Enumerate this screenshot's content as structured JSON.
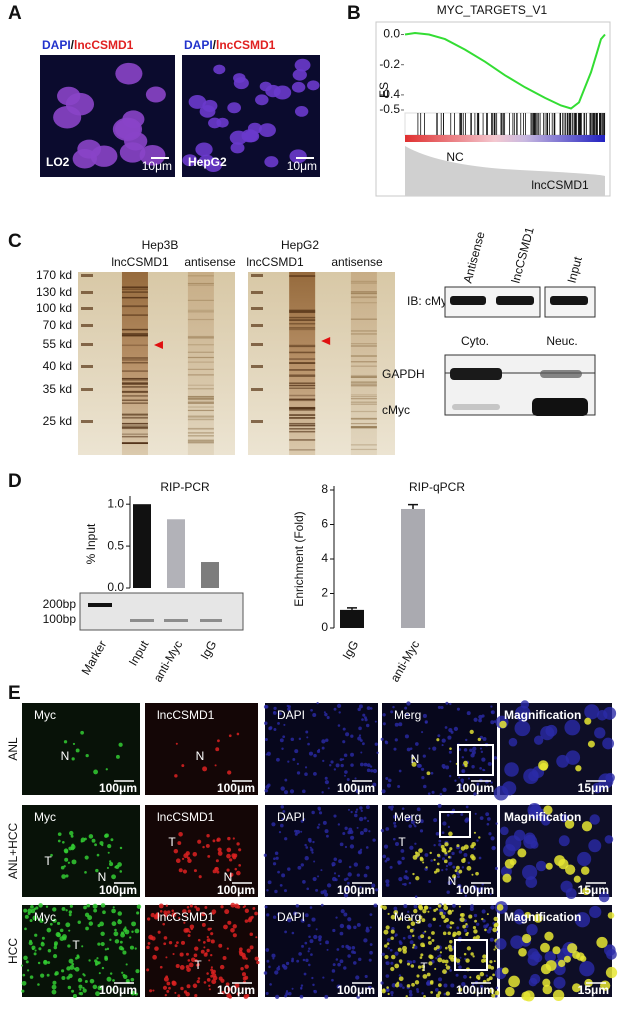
{
  "panel_labels": [
    "A",
    "B",
    "C",
    "D",
    "E"
  ],
  "panel_a": {
    "images": [
      {
        "stain_1": "DAPI",
        "separator": "/",
        "stain_2": "lncCSMD1",
        "name": "LO2",
        "scale": "10μm"
      },
      {
        "stain_1": "DAPI",
        "separator": "/",
        "stain_2": "lncCSMD1",
        "name": "HepG2",
        "scale": "10μm"
      }
    ]
  },
  "chart_data": [
    {
      "type": "line",
      "title": "MYC_TARGETS_V1",
      "ylabel": "ES",
      "x": [
        0,
        0.05,
        0.12,
        0.2,
        0.3,
        0.4,
        0.5,
        0.6,
        0.7,
        0.78,
        0.83,
        0.87,
        0.9,
        0.93,
        0.96,
        0.98,
        1
      ],
      "values": [
        0,
        0.01,
        0,
        -0.03,
        -0.1,
        -0.18,
        -0.27,
        -0.35,
        -0.42,
        -0.47,
        -0.49,
        -0.45,
        -0.35,
        -0.25,
        -0.12,
        -0.03,
        0
      ],
      "color": "#33dd33",
      "xlim": [
        0,
        1
      ],
      "ylim": [
        -0.52,
        0.03
      ],
      "yticks": [
        {
          "value": 0,
          "label": "0.0"
        },
        -0.2,
        -0.4,
        -0.5
      ],
      "annotations": [
        "NC",
        "lncCSMD1"
      ]
    },
    {
      "type": "bar",
      "title": "RIP-PCR",
      "ylabel": "% Input",
      "categories": [
        "Marker",
        "Input",
        "anti-Myc",
        "IgG"
      ],
      "values": [
        null,
        1.0,
        0.82,
        0.31
      ],
      "colors": [
        null,
        "#111111",
        "#b2b2b8",
        "#7d7d7d"
      ],
      "ylim": [
        0,
        1.05
      ],
      "yticks": [
        {
          "value": 0,
          "label": "0.0"
        },
        0.5,
        {
          "value": 1,
          "label": "1.0"
        }
      ]
    },
    {
      "type": "bar",
      "title": "RIP-qPCR",
      "ylabel": "Enrichment (Fold)",
      "categories": [
        "IgG",
        "anti-Myc"
      ],
      "values": [
        1.05,
        6.9
      ],
      "errors": [
        0.12,
        0.25
      ],
      "colors": [
        "#111111",
        "#aaaab0"
      ],
      "ylim": [
        0,
        8
      ],
      "yticks": [
        0,
        2,
        4,
        6,
        8
      ]
    }
  ],
  "panel_c": {
    "gels": [
      {
        "cell_line": "Hep3B",
        "lanes": [
          "lncCSMD1",
          "antisense"
        ]
      },
      {
        "cell_line": "HepG2",
        "lanes": [
          "lncCSMD1",
          "antisense"
        ]
      }
    ],
    "markers": [
      "170 kd",
      "130 kd",
      "100 kd",
      "70 kd",
      "55 kd",
      "40 kd",
      "35 kd",
      "25 kd"
    ],
    "ib": {
      "label": "IB: cMyc",
      "lanes": [
        "Antisense",
        "lncCSMD1",
        "Input"
      ]
    },
    "fractions": {
      "lanes": [
        "Cyto.",
        "Neuc."
      ],
      "rows": [
        "GAPDH",
        "cMyc"
      ]
    }
  },
  "panel_d": {
    "ladder": [
      "200bp",
      "100bp"
    ]
  },
  "panel_e": {
    "rows": [
      {
        "name": "ANL",
        "tiles": [
          {
            "title": "Myc",
            "marks": [
              "N"
            ],
            "scale": "100μm"
          },
          {
            "title": "lncCSMD1",
            "marks": [
              "N"
            ],
            "scale": "100μm"
          },
          {
            "title": "DAPI",
            "marks": [],
            "scale": "100μm"
          },
          {
            "title": "Merg",
            "marks": [
              "N"
            ],
            "scale": "100μm"
          },
          {
            "title": "Magnification",
            "marks": [],
            "scale": "15μm"
          }
        ]
      },
      {
        "name": "ANL+HCC",
        "tiles": [
          {
            "title": "Myc",
            "marks": [
              "T",
              "N"
            ],
            "scale": "100μm"
          },
          {
            "title": "lncCSMD1",
            "marks": [
              "T",
              "N"
            ],
            "scale": "100μm"
          },
          {
            "title": "DAPI",
            "marks": [],
            "scale": "100μm"
          },
          {
            "title": "Merg",
            "marks": [
              "T",
              "N"
            ],
            "scale": "100μm"
          },
          {
            "title": "Magnification",
            "marks": [],
            "scale": "15μm"
          }
        ]
      },
      {
        "name": "HCC",
        "tiles": [
          {
            "title": "Myc",
            "marks": [
              "T"
            ],
            "scale": "100μm"
          },
          {
            "title": "lncCSMD1",
            "marks": [
              "T"
            ],
            "scale": "100μm"
          },
          {
            "title": "DAPI",
            "marks": [],
            "scale": "100μm"
          },
          {
            "title": "Merg",
            "marks": [
              "T"
            ],
            "scale": "100μm"
          },
          {
            "title": "Magnification",
            "marks": [],
            "scale": "15μm"
          }
        ]
      }
    ]
  }
}
